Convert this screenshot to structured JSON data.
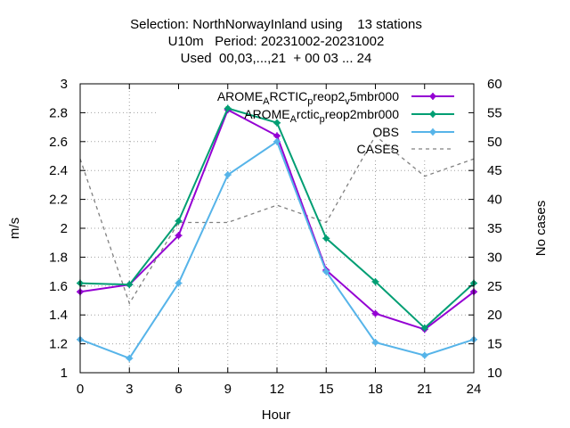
{
  "title_lines": [
    "Selection: NorthNorwayInland using    13 stations",
    "U10m   Period: 20231002-20231002",
    "Used  00,03,...,21  + 00 03 ... 24"
  ],
  "chart_data": {
    "type": "line",
    "xlabel": "Hour",
    "ylabel": "m/s",
    "y2label": "No cases",
    "x": [
      0,
      3,
      6,
      9,
      12,
      15,
      18,
      21,
      24
    ],
    "xticks": [
      "0",
      "3",
      "6",
      "9",
      "12",
      "15",
      "18",
      "21",
      "24"
    ],
    "xlim": [
      0,
      24
    ],
    "ylim": [
      1,
      3
    ],
    "yticks": [
      "1",
      "1.2",
      "1.4",
      "1.6",
      "1.8",
      "2",
      "2.2",
      "2.4",
      "2.6",
      "2.8",
      "3"
    ],
    "y2lim": [
      10,
      60
    ],
    "y2ticks": [
      "10",
      "15",
      "20",
      "25",
      "30",
      "35",
      "40",
      "45",
      "50",
      "55",
      "60"
    ],
    "grid": true,
    "legend_position": "top-right",
    "series": [
      {
        "name": "AROME_ARCTIC_preop2_v5mbr000",
        "legend_parts": [
          [
            "AROME",
            ""
          ],
          [
            "A",
            "sub"
          ],
          [
            "RCTIC",
            ""
          ],
          [
            "p",
            "sub"
          ],
          [
            "reop2",
            ""
          ],
          [
            "v",
            "sub"
          ],
          [
            "5mbr000",
            ""
          ]
        ],
        "color": "#9400d3",
        "axis": "y",
        "marker": true,
        "values": [
          1.56,
          1.61,
          1.95,
          2.82,
          2.64,
          1.71,
          1.41,
          1.3,
          1.56
        ]
      },
      {
        "name": "AROME_Arctic_preop2mbr000",
        "legend_parts": [
          [
            "AROME",
            ""
          ],
          [
            "A",
            "sub"
          ],
          [
            "rctic",
            ""
          ],
          [
            "p",
            "sub"
          ],
          [
            "reop2mbr000",
            ""
          ]
        ],
        "color": "#009e73",
        "axis": "y",
        "marker": true,
        "values": [
          1.62,
          1.61,
          2.05,
          2.83,
          2.73,
          1.93,
          1.63,
          1.31,
          1.62
        ]
      },
      {
        "name": "OBS",
        "legend_parts": [
          [
            "OBS",
            ""
          ]
        ],
        "color": "#56b4e9",
        "axis": "y",
        "marker": true,
        "values": [
          1.23,
          1.1,
          1.62,
          2.37,
          2.6,
          1.7,
          1.21,
          1.12,
          1.23
        ]
      },
      {
        "name": "CASES",
        "legend_parts": [
          [
            "CASES",
            ""
          ]
        ],
        "color": "#808080",
        "axis": "y2",
        "marker": false,
        "dashed": true,
        "values": [
          47,
          22,
          36,
          36,
          39,
          36,
          51,
          44,
          47
        ]
      }
    ]
  }
}
